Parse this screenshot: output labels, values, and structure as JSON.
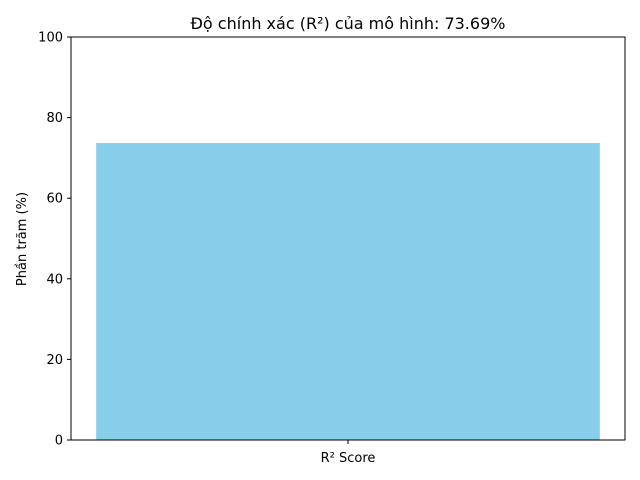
{
  "chart_data": {
    "type": "bar",
    "title": "Độ chính xác (R²) của mô hình: 73.69%",
    "xlabel": "",
    "ylabel": "Phần trăm (%)",
    "categories": [
      "R² Score"
    ],
    "values": [
      73.69
    ],
    "ylim": [
      0,
      100
    ],
    "yticks": [
      0,
      20,
      40,
      60,
      80,
      100
    ],
    "grid": false,
    "legend": "none",
    "colors": {
      "bar": "#87ceeb",
      "axes": "#000000",
      "text": "#000000"
    }
  }
}
